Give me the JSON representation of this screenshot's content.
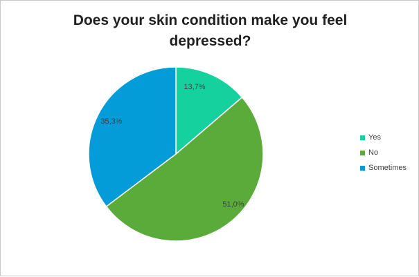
{
  "chart_data": {
    "type": "pie",
    "title": "Does your skin condition make you feel depressed?",
    "labels": [
      "Yes",
      "No",
      "Sometimes"
    ],
    "values": [
      13.7,
      51.0,
      35.3
    ],
    "data_labels": [
      "13,7%",
      "51,0%",
      "35,3%"
    ],
    "colors": [
      "#15d19e",
      "#5bab3b",
      "#049cd8"
    ],
    "start_angle_deg": 0,
    "direction": "clockwise",
    "legend_position": "right"
  }
}
